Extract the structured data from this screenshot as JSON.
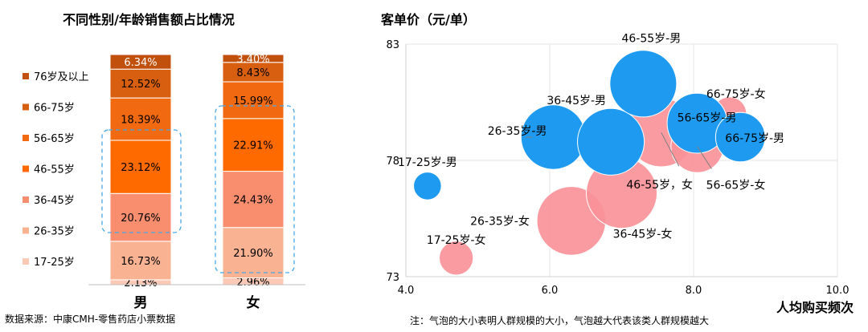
{
  "source_note": "数据来源：中康CMH-零售药店小票数据",
  "bubble_note": "注：气泡的大小表明人群规模的大小，气泡越大代表该类人群规模越大",
  "chart_data": [
    {
      "type": "bar",
      "stacked": true,
      "percent": true,
      "title": "不同性别/年龄销售额占比情况",
      "categories": [
        "男",
        "女"
      ],
      "series": [
        {
          "name": "17-25岁",
          "color": "#FBC9B6",
          "values": [
            2.13,
            2.96
          ],
          "labels": [
            "2.13%",
            "2.96%"
          ]
        },
        {
          "name": "26-35岁",
          "color": "#F9B393",
          "values": [
            16.73,
            21.9
          ],
          "labels": [
            "16.73%",
            "21.90%"
          ]
        },
        {
          "name": "36-45岁",
          "color": "#F98E6F",
          "values": [
            20.76,
            24.43
          ],
          "labels": [
            "20.76%",
            "24.43%"
          ]
        },
        {
          "name": "46-55岁",
          "color": "#FF6A00",
          "values": [
            23.12,
            22.91
          ],
          "labels": [
            "23.12%",
            "22.91%"
          ]
        },
        {
          "name": "56-65岁",
          "color": "#F16A12",
          "values": [
            18.39,
            15.99
          ],
          "labels": [
            "18.39%",
            "15.99%"
          ]
        },
        {
          "name": "66-75岁",
          "color": "#D95F10",
          "values": [
            12.52,
            8.43
          ],
          "labels": [
            "12.52%",
            "8.43%"
          ]
        },
        {
          "name": "76岁及以上",
          "color": "#C0500C",
          "values": [
            6.34,
            3.4
          ],
          "labels": [
            "6.34%",
            "3.40%"
          ]
        }
      ],
      "legend_position": "left"
    },
    {
      "type": "bubble",
      "title": "客单价（元/单）",
      "xlabel": "人均购买频次",
      "xlim": [
        4.0,
        10.0
      ],
      "ylim": [
        73,
        83
      ],
      "xticks": [
        "4.0",
        "6.0",
        "8.0",
        "10.0"
      ],
      "yticks": [
        "73",
        "78",
        "83"
      ],
      "grid": true,
      "series": [
        {
          "name": "男",
          "color": "#1E9BF0",
          "points": [
            {
              "label": "17-25岁-男",
              "x": 4.3,
              "y": 76.9,
              "size": 1
            },
            {
              "label": "26-35岁-男",
              "x": 6.05,
              "y": 79.0,
              "size": 12
            },
            {
              "label": "36-45岁-男",
              "x": 6.85,
              "y": 78.8,
              "size": 13
            },
            {
              "label": "46-55岁-男",
              "x": 7.3,
              "y": 81.3,
              "size": 13
            },
            {
              "label": "56-65岁-男",
              "x": 8.05,
              "y": 79.6,
              "size": 10
            },
            {
              "label": "66-75岁-男",
              "x": 8.65,
              "y": 79.0,
              "size": 6
            }
          ]
        },
        {
          "name": "女",
          "color": "#F99398",
          "points": [
            {
              "label": "17-25岁-女",
              "x": 4.7,
              "y": 73.8,
              "size": 2
            },
            {
              "label": "26-35岁-女",
              "x": 6.3,
              "y": 75.4,
              "size": 14
            },
            {
              "label": "36-45岁-女",
              "x": 7.0,
              "y": 76.6,
              "size": 15
            },
            {
              "label": "46-55岁，女",
              "x": 7.55,
              "y": 79.2,
              "size": 14
            },
            {
              "label": "56-65岁-女",
              "x": 8.05,
              "y": 78.6,
              "size": 7
            },
            {
              "label": "66-75岁-女",
              "x": 8.5,
              "y": 80.0,
              "size": 2
            }
          ]
        }
      ]
    }
  ]
}
